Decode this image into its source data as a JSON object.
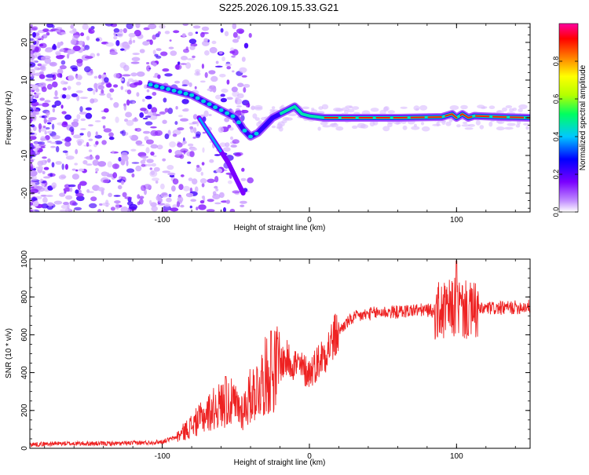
{
  "figure_title": "S225.2026.109.15.33.G21",
  "chart_data": [
    {
      "type": "heatmap",
      "title": "S225.2026.109.15.33.G21",
      "xlabel": "Height of straight line (km)",
      "ylabel": "Frequency (Hz)",
      "xlim": [
        -190,
        150
      ],
      "ylim": [
        -25,
        25
      ],
      "x_ticks": [
        -100,
        0,
        100
      ],
      "y_ticks": [
        -20,
        -10,
        0,
        10,
        20
      ],
      "colorbar": {
        "label": "Normalized spectral amplitude",
        "range": [
          0,
          1
        ],
        "ticks": [
          0.0,
          0.2,
          0.4,
          0.6,
          0.8
        ],
        "tick_labels": [
          "0.0",
          "0.2",
          "0.4",
          "0.6",
          "0.8"
        ],
        "colors": [
          "#ffffff",
          "#c08cff",
          "#7a00ff",
          "#0000ff",
          "#00c8ff",
          "#00ff60",
          "#b4ff00",
          "#ffff00",
          "#ff8000",
          "#ff0000",
          "#ff00a0"
        ]
      },
      "ridge_line": {
        "x": [
          -110,
          -100,
          -90,
          -80,
          -70,
          -60,
          -50,
          -45,
          -40,
          -35,
          -30,
          -25,
          -20,
          -15,
          -10,
          -5,
          0,
          10,
          30,
          60,
          90,
          97,
          100,
          104,
          108,
          112,
          130,
          150
        ],
        "y": [
          9,
          8,
          7,
          6,
          4,
          2,
          0,
          -3,
          -5,
          -4,
          -2,
          0,
          1,
          2,
          3,
          1,
          0.5,
          0,
          0,
          0,
          0.2,
          1,
          0,
          1,
          0,
          0.5,
          0.2,
          0
        ]
      },
      "branch_line": {
        "x": [
          -75,
          -70,
          -65,
          -60,
          -55,
          -50,
          -45
        ],
        "y": [
          0,
          -3,
          -6,
          -9,
          -12,
          -16,
          -20
        ]
      }
    },
    {
      "type": "line",
      "xlabel": "Height of straight line (km)",
      "ylabel": "SNR (10 * v/v)",
      "xlim": [
        -190,
        150
      ],
      "ylim": [
        0,
        1000
      ],
      "x_ticks": [
        -100,
        0,
        100
      ],
      "y_ticks": [
        0,
        200,
        400,
        600,
        800,
        1000
      ],
      "series": [
        {
          "name": "SNR",
          "color": "#ee2222",
          "x": [
            -190,
            -170,
            -150,
            -130,
            -110,
            -100,
            -90,
            -85,
            -80,
            -75,
            -70,
            -65,
            -60,
            -55,
            -50,
            -45,
            -40,
            -35,
            -30,
            -25,
            -20,
            -15,
            -10,
            -5,
            0,
            5,
            10,
            15,
            20,
            25,
            30,
            35,
            40,
            50,
            60,
            70,
            80,
            90,
            95,
            100,
            105,
            110,
            120,
            130,
            140,
            150
          ],
          "y": [
            20,
            25,
            25,
            25,
            30,
            35,
            60,
            90,
            120,
            150,
            180,
            210,
            230,
            250,
            220,
            200,
            280,
            320,
            380,
            400,
            450,
            470,
            450,
            420,
            400,
            450,
            500,
            560,
            620,
            660,
            690,
            700,
            710,
            720,
            720,
            730,
            730,
            720,
            730,
            750,
            730,
            720,
            740,
            740,
            745,
            750
          ],
          "annotations": [
            {
              "x": -57,
              "y": 380
            },
            {
              "x": -26,
              "y": 620
            },
            {
              "x": 100,
              "y": 990
            }
          ]
        }
      ]
    }
  ]
}
